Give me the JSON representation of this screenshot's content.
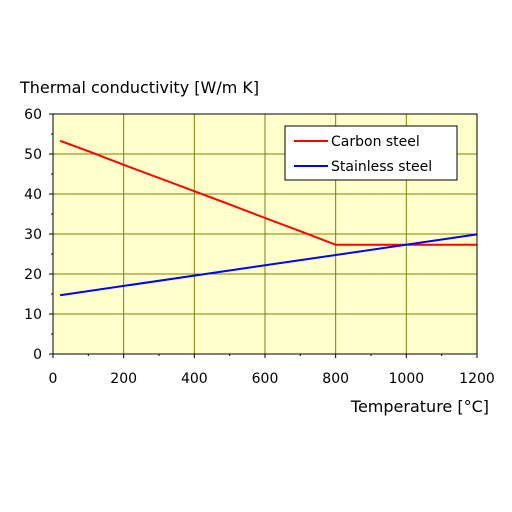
{
  "chart_data": {
    "type": "line",
    "ylabel": "Thermal conductivity [W/m K]",
    "xlabel": "Temperature [°C]",
    "xlim": [
      0,
      1200
    ],
    "ylim": [
      0,
      60
    ],
    "x_ticks": [
      0,
      200,
      400,
      600,
      800,
      1000,
      1200
    ],
    "y_ticks": [
      0,
      10,
      20,
      30,
      40,
      50,
      60
    ],
    "grid": true,
    "plot_background": "#ffffcc",
    "grid_color": "#808000",
    "legend_position": "top-right",
    "series": [
      {
        "name": "Carbon steel",
        "color": "#ff0000",
        "x": [
          20,
          100,
          200,
          300,
          400,
          500,
          600,
          700,
          800,
          1200
        ],
        "y": [
          53.3,
          50.7,
          47.3,
          44.0,
          40.7,
          37.4,
          34.0,
          30.7,
          27.3,
          27.3
        ]
      },
      {
        "name": "Stainless steel",
        "color": "#0000ff",
        "x": [
          20,
          1200
        ],
        "y": [
          14.7,
          29.9
        ]
      }
    ]
  }
}
